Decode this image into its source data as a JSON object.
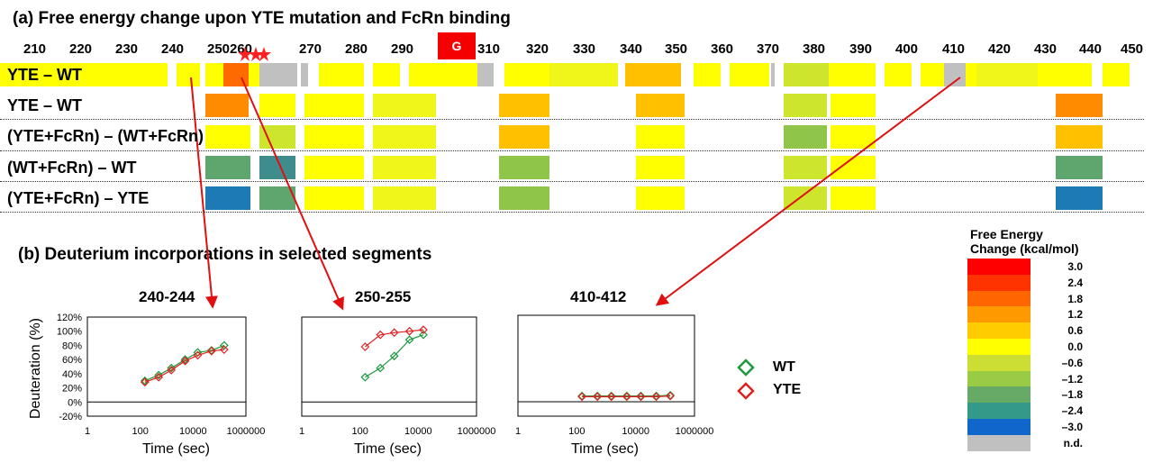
{
  "panel_a": {
    "title": "(a) Free energy change upon YTE mutation and FcRn binding",
    "g_label": "G",
    "ruler_ticks": [
      "210",
      "220",
      "230",
      "240",
      "250",
      "260",
      "270",
      "280",
      "290",
      "310",
      "320",
      "330",
      "340",
      "350",
      "360",
      "370",
      "380",
      "390",
      "400",
      "410",
      "420",
      "430",
      "440",
      "450"
    ],
    "rows": [
      {
        "label": "YTE – WT"
      },
      {
        "label": "YTE – WT"
      },
      {
        "label": "(YTE+FcRn) – (WT+FcRn)"
      },
      {
        "label": "(WT+FcRn) – WT"
      },
      {
        "label": "(YTE+FcRn) – YTE"
      }
    ]
  },
  "panel_b": {
    "title": "(b) Deuterium incorporations in selected segments"
  },
  "colors": {
    "yellow": "#ffff00",
    "yellow_green": "#f0f51a",
    "lime": "#cde52c",
    "green": "#8fc548",
    "green_mid": "#5fa56e",
    "teal": "#3f8c8c",
    "blue": "#1e7ab4",
    "orange": "#ff8c00",
    "orange_dark": "#ff6a00",
    "amber": "#ffc000",
    "gray": "#c0c0c0",
    "wt": "#1a9a3c",
    "yte": "#e02020",
    "arrow": "#e01010"
  },
  "scale": {
    "title": "Free Energy\nChange (kcal/mol)",
    "values": [
      "3.0",
      "2.4",
      "1.8",
      "1.2",
      "0.6",
      "0.0",
      "–0.6",
      "–1.2",
      "–1.8",
      "–2.4",
      "–3.0",
      "n.d."
    ],
    "swatches": [
      "#ff0000",
      "#ff3300",
      "#ff6600",
      "#ff9900",
      "#ffcc00",
      "#ffff00",
      "#ccdd33",
      "#99cc44",
      "#66aa66",
      "#339988",
      "#1166cc",
      "#c0c0c0"
    ]
  },
  "legend": {
    "wt": "WT",
    "yte": "YTE"
  },
  "chart_data": [
    {
      "type": "scatter",
      "title": "240-244",
      "xlabel": "Time (sec)",
      "ylabel": "Deuteration (%)",
      "xscale": "log",
      "xlim": [
        1,
        1000000
      ],
      "ylim": [
        -20,
        120
      ],
      "x_ticks": [
        "1",
        "100",
        "10000",
        "1000000"
      ],
      "y_ticks": [
        "-20%",
        "0%",
        "20%",
        "40%",
        "60%",
        "80%",
        "100%",
        "120%"
      ],
      "series": [
        {
          "name": "WT",
          "x": [
            150,
            500,
            1500,
            5000,
            15000,
            50000,
            150000
          ],
          "y": [
            30,
            38,
            48,
            60,
            70,
            73,
            80
          ]
        },
        {
          "name": "YTE",
          "x": [
            150,
            500,
            1500,
            5000,
            15000,
            50000,
            150000
          ],
          "y": [
            28,
            35,
            45,
            58,
            66,
            72,
            74
          ]
        }
      ]
    },
    {
      "type": "scatter",
      "title": "250-255",
      "xlabel": "Time (sec)",
      "xscale": "log",
      "xlim": [
        1,
        1000000
      ],
      "ylim": [
        -20,
        120
      ],
      "x_ticks": [
        "1",
        "100",
        "10000",
        "1000000"
      ],
      "series": [
        {
          "name": "WT",
          "x": [
            150,
            500,
            1500,
            5000,
            15000
          ],
          "y": [
            35,
            48,
            65,
            88,
            95
          ]
        },
        {
          "name": "YTE",
          "x": [
            150,
            500,
            1500,
            5000,
            15000
          ],
          "y": [
            78,
            95,
            98,
            100,
            102
          ]
        }
      ]
    },
    {
      "type": "scatter",
      "title": "410-412",
      "xlabel": "Time (sec)",
      "xscale": "log",
      "xlim": [
        1,
        1000000
      ],
      "ylim": [
        -20,
        120
      ],
      "x_ticks": [
        "1",
        "100",
        "10000",
        "1000000"
      ],
      "series": [
        {
          "name": "WT",
          "x": [
            150,
            500,
            1500,
            5000,
            15000,
            50000,
            150000
          ],
          "y": [
            8,
            8,
            8,
            8,
            8,
            8,
            9
          ]
        },
        {
          "name": "YTE",
          "x": [
            150,
            500,
            1500,
            5000,
            15000,
            50000,
            150000
          ],
          "y": [
            7,
            7,
            7,
            7,
            7,
            7,
            8
          ]
        }
      ]
    }
  ]
}
